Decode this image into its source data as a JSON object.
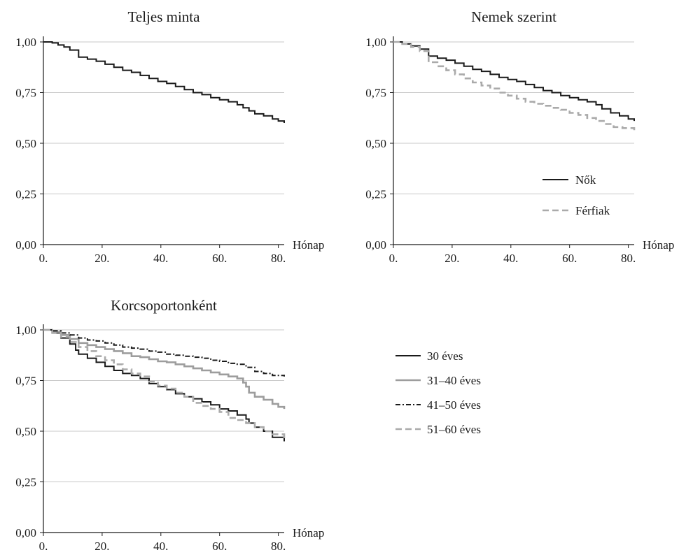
{
  "chart_data": [
    {
      "type": "line",
      "title": "Teljes minta",
      "xlabel": "Hónap",
      "ylabel": "",
      "xlim": [
        0,
        82
      ],
      "ylim": [
        0,
        1
      ],
      "xticks": [
        "0.",
        "20.",
        "40.",
        "60.",
        "80."
      ],
      "yticks": [
        "0,00",
        "0,25",
        "0,50",
        "0,75",
        "1,00"
      ],
      "grid": "horizontal",
      "legend": "none",
      "series": [
        {
          "style": "solid",
          "color": "#1a1a1a",
          "x": [
            0,
            3,
            5,
            7,
            9,
            12,
            15,
            18,
            21,
            24,
            27,
            30,
            33,
            36,
            39,
            42,
            45,
            48,
            51,
            54,
            57,
            60,
            63,
            66,
            68,
            70,
            72,
            75,
            78,
            80,
            82
          ],
          "y": [
            1.0,
            0.995,
            0.985,
            0.975,
            0.96,
            0.925,
            0.915,
            0.905,
            0.89,
            0.875,
            0.86,
            0.85,
            0.835,
            0.82,
            0.805,
            0.795,
            0.78,
            0.765,
            0.75,
            0.74,
            0.725,
            0.715,
            0.705,
            0.69,
            0.675,
            0.66,
            0.645,
            0.635,
            0.62,
            0.61,
            0.6
          ]
        }
      ]
    },
    {
      "type": "line",
      "title": "Nemek szerint",
      "xlabel": "Hónap",
      "ylabel": "",
      "xlim": [
        0,
        82
      ],
      "ylim": [
        0,
        1
      ],
      "xticks": [
        "0.",
        "20.",
        "40.",
        "60.",
        "80."
      ],
      "yticks": [
        "0,00",
        "0,25",
        "0,50",
        "0,75",
        "1,00"
      ],
      "grid": "horizontal",
      "legend": "lower-right",
      "series": [
        {
          "name": "Nők",
          "style": "solid",
          "color": "#1a1a1a",
          "x": [
            0,
            3,
            6,
            9,
            12,
            15,
            18,
            21,
            24,
            27,
            30,
            33,
            36,
            39,
            42,
            45,
            48,
            51,
            54,
            57,
            60,
            63,
            66,
            69,
            71,
            74,
            77,
            80,
            82
          ],
          "y": [
            1.0,
            0.99,
            0.98,
            0.965,
            0.93,
            0.92,
            0.91,
            0.895,
            0.88,
            0.865,
            0.855,
            0.84,
            0.825,
            0.815,
            0.805,
            0.79,
            0.775,
            0.76,
            0.75,
            0.735,
            0.725,
            0.715,
            0.705,
            0.69,
            0.67,
            0.65,
            0.635,
            0.62,
            0.61
          ]
        },
        {
          "name": "Férfiak",
          "style": "dashed",
          "color": "#aaaaaa",
          "x": [
            0,
            3,
            6,
            9,
            12,
            15,
            18,
            21,
            24,
            27,
            30,
            33,
            36,
            39,
            42,
            45,
            48,
            51,
            54,
            57,
            60,
            63,
            66,
            69,
            72,
            75,
            78,
            82
          ],
          "y": [
            1.0,
            0.99,
            0.975,
            0.955,
            0.9,
            0.88,
            0.86,
            0.84,
            0.82,
            0.8,
            0.785,
            0.77,
            0.75,
            0.735,
            0.72,
            0.705,
            0.695,
            0.685,
            0.675,
            0.665,
            0.65,
            0.64,
            0.625,
            0.61,
            0.595,
            0.58,
            0.575,
            0.565
          ]
        }
      ]
    },
    {
      "type": "line",
      "title": "Korcsoportonként",
      "xlabel": "Hónap",
      "ylabel": "",
      "xlim": [
        0,
        82
      ],
      "ylim": [
        0,
        1
      ],
      "xticks": [
        "0.",
        "20.",
        "40.",
        "60.",
        "80."
      ],
      "yticks": [
        "0,00",
        "0,25",
        "0,50",
        "0,75",
        "1,00"
      ],
      "grid": "horizontal",
      "legend": "right",
      "series": [
        {
          "name": "30 éves",
          "style": "solid",
          "color": "#1a1a1a",
          "x": [
            0,
            3,
            6,
            9,
            11,
            12,
            15,
            18,
            21,
            24,
            27,
            30,
            33,
            36,
            39,
            42,
            45,
            48,
            51,
            54,
            57,
            60,
            63,
            66,
            69,
            70,
            72,
            75,
            78,
            82
          ],
          "y": [
            1.0,
            0.985,
            0.96,
            0.93,
            0.9,
            0.88,
            0.86,
            0.84,
            0.82,
            0.8,
            0.785,
            0.775,
            0.76,
            0.735,
            0.72,
            0.705,
            0.685,
            0.67,
            0.66,
            0.645,
            0.63,
            0.61,
            0.6,
            0.58,
            0.56,
            0.54,
            0.52,
            0.5,
            0.47,
            0.45
          ]
        },
        {
          "name": "31–40 éves",
          "style": "solid",
          "color": "#9d9d9d",
          "x": [
            0,
            3,
            6,
            9,
            12,
            15,
            18,
            21,
            24,
            27,
            30,
            33,
            36,
            39,
            42,
            45,
            48,
            51,
            54,
            57,
            60,
            63,
            66,
            68,
            69,
            70,
            72,
            75,
            78,
            80,
            82
          ],
          "y": [
            1.0,
            0.99,
            0.975,
            0.955,
            0.935,
            0.925,
            0.915,
            0.905,
            0.895,
            0.885,
            0.87,
            0.865,
            0.855,
            0.845,
            0.84,
            0.83,
            0.82,
            0.81,
            0.8,
            0.79,
            0.78,
            0.77,
            0.76,
            0.74,
            0.72,
            0.69,
            0.67,
            0.655,
            0.635,
            0.62,
            0.61
          ]
        },
        {
          "name": "41–50 éves",
          "style": "dashdot",
          "color": "#1a1a1a",
          "x": [
            0,
            3,
            6,
            9,
            12,
            15,
            18,
            21,
            24,
            27,
            30,
            33,
            36,
            39,
            42,
            45,
            48,
            51,
            54,
            57,
            60,
            63,
            66,
            69,
            72,
            75,
            78,
            82
          ],
          "y": [
            1.0,
            0.995,
            0.985,
            0.975,
            0.96,
            0.95,
            0.945,
            0.935,
            0.925,
            0.915,
            0.91,
            0.905,
            0.895,
            0.89,
            0.88,
            0.875,
            0.87,
            0.865,
            0.86,
            0.85,
            0.845,
            0.835,
            0.83,
            0.815,
            0.795,
            0.785,
            0.775,
            0.77
          ]
        },
        {
          "name": "51–60 éves",
          "style": "dashed",
          "color": "#aaaaaa",
          "x": [
            0,
            3,
            6,
            9,
            12,
            15,
            18,
            21,
            24,
            27,
            30,
            33,
            36,
            39,
            42,
            45,
            48,
            51,
            54,
            57,
            60,
            63,
            66,
            69,
            72,
            75,
            78,
            82
          ],
          "y": [
            1.0,
            0.985,
            0.965,
            0.94,
            0.915,
            0.895,
            0.87,
            0.85,
            0.83,
            0.805,
            0.785,
            0.77,
            0.745,
            0.725,
            0.71,
            0.69,
            0.67,
            0.64,
            0.625,
            0.61,
            0.595,
            0.565,
            0.555,
            0.54,
            0.52,
            0.5,
            0.485,
            0.46
          ]
        }
      ]
    }
  ]
}
